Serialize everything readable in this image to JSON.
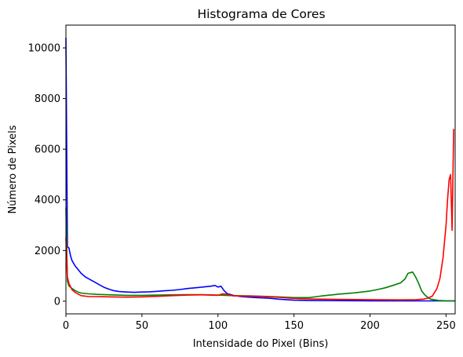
{
  "chart_data": {
    "type": "line",
    "title": "Histograma de Cores",
    "xlabel": "Intensidade do Pixel (Bins)",
    "ylabel": "Número de Pixels",
    "xlim": [
      0,
      256
    ],
    "ylim": [
      -500,
      10900
    ],
    "grid": false,
    "legend": "none",
    "xticks": [
      0,
      50,
      100,
      150,
      200,
      250
    ],
    "yticks": [
      0,
      2000,
      4000,
      6000,
      8000,
      10000
    ],
    "series": [
      {
        "color": "#0000ff",
        "points": [
          [
            0,
            10400
          ],
          [
            1,
            2150
          ],
          [
            2,
            2100
          ],
          [
            3,
            1800
          ],
          [
            4,
            1600
          ],
          [
            6,
            1400
          ],
          [
            8,
            1250
          ],
          [
            10,
            1100
          ],
          [
            13,
            950
          ],
          [
            16,
            850
          ],
          [
            19,
            750
          ],
          [
            22,
            650
          ],
          [
            25,
            550
          ],
          [
            28,
            480
          ],
          [
            31,
            420
          ],
          [
            35,
            380
          ],
          [
            40,
            360
          ],
          [
            45,
            350
          ],
          [
            50,
            360
          ],
          [
            55,
            370
          ],
          [
            60,
            390
          ],
          [
            65,
            410
          ],
          [
            70,
            430
          ],
          [
            75,
            460
          ],
          [
            80,
            500
          ],
          [
            85,
            530
          ],
          [
            90,
            560
          ],
          [
            95,
            590
          ],
          [
            98,
            620
          ],
          [
            100,
            560
          ],
          [
            102,
            590
          ],
          [
            104,
            420
          ],
          [
            106,
            300
          ],
          [
            110,
            230
          ],
          [
            115,
            180
          ],
          [
            120,
            160
          ],
          [
            125,
            140
          ],
          [
            130,
            130
          ],
          [
            135,
            110
          ],
          [
            140,
            80
          ],
          [
            145,
            60
          ],
          [
            150,
            40
          ],
          [
            160,
            30
          ],
          [
            170,
            25
          ],
          [
            180,
            20
          ],
          [
            200,
            15
          ],
          [
            220,
            12
          ],
          [
            240,
            10
          ],
          [
            256,
            10
          ]
        ]
      },
      {
        "color": "#008000",
        "points": [
          [
            0,
            3700
          ],
          [
            1,
            800
          ],
          [
            2,
            600
          ],
          [
            4,
            500
          ],
          [
            6,
            420
          ],
          [
            8,
            360
          ],
          [
            10,
            320
          ],
          [
            15,
            290
          ],
          [
            20,
            270
          ],
          [
            30,
            250
          ],
          [
            40,
            230
          ],
          [
            50,
            230
          ],
          [
            60,
            240
          ],
          [
            70,
            250
          ],
          [
            80,
            260
          ],
          [
            90,
            260
          ],
          [
            100,
            240
          ],
          [
            105,
            230
          ],
          [
            110,
            220
          ],
          [
            120,
            210
          ],
          [
            130,
            190
          ],
          [
            140,
            170
          ],
          [
            150,
            140
          ],
          [
            160,
            140
          ],
          [
            165,
            180
          ],
          [
            170,
            220
          ],
          [
            180,
            280
          ],
          [
            190,
            330
          ],
          [
            200,
            400
          ],
          [
            205,
            460
          ],
          [
            210,
            530
          ],
          [
            215,
            620
          ],
          [
            220,
            720
          ],
          [
            223,
            880
          ],
          [
            225,
            1100
          ],
          [
            228,
            1150
          ],
          [
            230,
            960
          ],
          [
            232,
            700
          ],
          [
            234,
            400
          ],
          [
            236,
            250
          ],
          [
            238,
            150
          ],
          [
            240,
            80
          ],
          [
            245,
            30
          ],
          [
            250,
            15
          ],
          [
            256,
            10
          ]
        ]
      },
      {
        "color": "#ff0000",
        "points": [
          [
            0,
            2500
          ],
          [
            1,
            950
          ],
          [
            2,
            700
          ],
          [
            4,
            450
          ],
          [
            6,
            350
          ],
          [
            8,
            280
          ],
          [
            10,
            220
          ],
          [
            15,
            180
          ],
          [
            20,
            180
          ],
          [
            30,
            170
          ],
          [
            40,
            160
          ],
          [
            50,
            170
          ],
          [
            60,
            190
          ],
          [
            70,
            220
          ],
          [
            80,
            240
          ],
          [
            90,
            250
          ],
          [
            100,
            230
          ],
          [
            103,
            290
          ],
          [
            106,
            270
          ],
          [
            110,
            210
          ],
          [
            120,
            200
          ],
          [
            130,
            180
          ],
          [
            140,
            150
          ],
          [
            150,
            110
          ],
          [
            160,
            90
          ],
          [
            170,
            80
          ],
          [
            180,
            70
          ],
          [
            200,
            60
          ],
          [
            220,
            50
          ],
          [
            230,
            60
          ],
          [
            235,
            80
          ],
          [
            238,
            120
          ],
          [
            241,
            200
          ],
          [
            244,
            500
          ],
          [
            246,
            900
          ],
          [
            248,
            1700
          ],
          [
            250,
            3000
          ],
          [
            251,
            4000
          ],
          [
            252,
            4800
          ],
          [
            253,
            5000
          ],
          [
            254,
            2800
          ],
          [
            255,
            6800
          ]
        ]
      }
    ]
  }
}
